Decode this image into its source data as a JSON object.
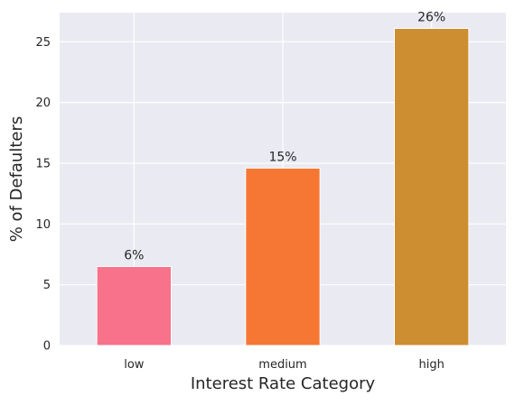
{
  "chart_data": {
    "type": "bar",
    "title": "",
    "xlabel": "Interest Rate Category",
    "ylabel": "% of Defaulters",
    "categories": [
      "low",
      "medium",
      "high"
    ],
    "values": [
      6.5,
      14.6,
      26.1
    ],
    "data_labels": [
      "6%",
      "15%",
      "26%"
    ],
    "colors": [
      "#f7728a",
      "#f67733",
      "#cd8d31"
    ],
    "ylim": [
      0,
      27.4
    ],
    "yticks": [
      0,
      5,
      10,
      15,
      20,
      25
    ],
    "grid": true,
    "background": "#eaeaf2",
    "grid_color": "#ffffff"
  }
}
